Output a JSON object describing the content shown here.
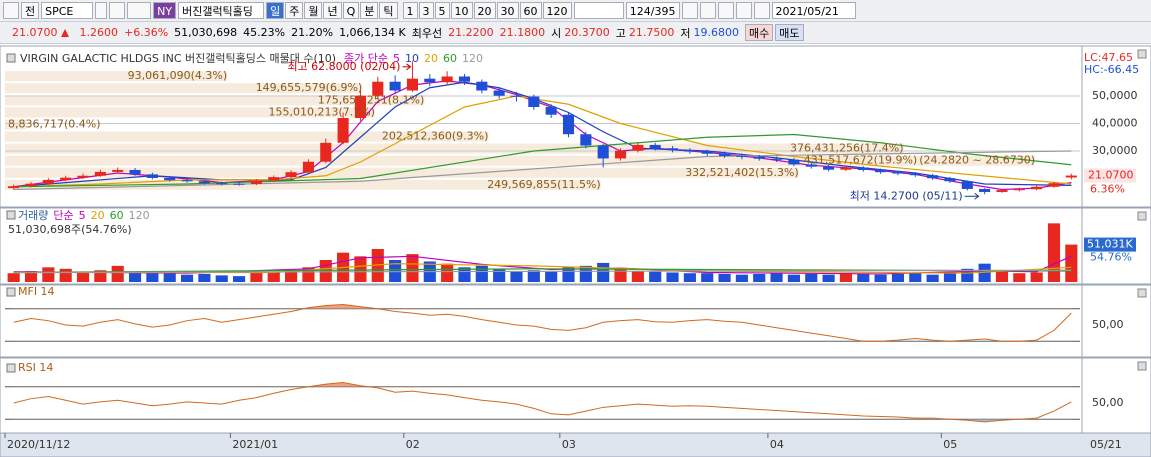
{
  "toolbar": {
    "prefix": "전",
    "code": "SPCE",
    "exchange": "NY",
    "name": "버진갤럭틱홀딩",
    "periods": [
      "일",
      "주",
      "월",
      "년",
      "Q",
      "분",
      "틱"
    ],
    "intervals": [
      "1",
      "3",
      "5",
      "10",
      "20",
      "30",
      "60",
      "120"
    ],
    "count": "124/395",
    "date": "2021/05/21"
  },
  "quote": {
    "price": "21.0700",
    "change": "1.2600",
    "change_pct": "+6.36%",
    "volume": "51,030,698",
    "vol_ratio": "45.23%",
    "turnover": "21.20%",
    "amount": "1,066,134 K",
    "best_label": "최우선",
    "ask": "21.2200",
    "bid": "21.1800",
    "open_label": "시",
    "open": "20.3700",
    "high_label": "고",
    "high": "21.7500",
    "low_label": "저",
    "low": "19.6800",
    "buy": "매수",
    "sell": "매도"
  },
  "chart_data": [
    {
      "type": "candlestick",
      "title": "VIRGIN GALACTIC HLDGS INC  버진갤럭틱홀딩스 매물대 수(10)",
      "ma_label": "종가 단순",
      "categories": [
        "2020/11/12",
        null,
        null,
        null,
        null,
        null,
        null,
        null,
        null,
        null,
        null,
        null,
        null,
        "2021/01",
        null,
        null,
        null,
        null,
        null,
        null,
        null,
        null,
        null,
        "02",
        null,
        null,
        null,
        null,
        null,
        null,
        null,
        null,
        "03",
        null,
        null,
        null,
        null,
        null,
        null,
        null,
        null,
        null,
        null,
        null,
        "04",
        null,
        null,
        null,
        null,
        null,
        null,
        null,
        null,
        null,
        "05",
        null,
        null,
        null,
        null,
        null,
        null,
        "05/21"
      ],
      "open": [
        16.5,
        17.2,
        18.1,
        19.5,
        20.3,
        21.0,
        22.4,
        23.1,
        21.5,
        20.2,
        19.4,
        19.0,
        18.3,
        18.1,
        18.0,
        19.2,
        20.5,
        22.3,
        26.1,
        33.0,
        42.0,
        50.1,
        55.2,
        52.0,
        56.3,
        55.0,
        57.1,
        55.2,
        52.0,
        50.1,
        49.8,
        46.0,
        43.2,
        36.1,
        32.0,
        27.3,
        30.1,
        32.2,
        31.0,
        30.3,
        29.8,
        29.0,
        28.2,
        27.9,
        27.2,
        26.8,
        25.1,
        24.3,
        23.2,
        24.0,
        23.1,
        22.3,
        21.8,
        21.2,
        20.1,
        19.0,
        16.2,
        15.1,
        15.8,
        16.1,
        17.0,
        20.37
      ],
      "high": [
        17.8,
        18.7,
        20.1,
        21.0,
        21.8,
        23.2,
        24.0,
        23.8,
        22.1,
        20.8,
        20.0,
        19.5,
        18.9,
        18.8,
        19.8,
        21.1,
        23.0,
        27.0,
        34.5,
        44.0,
        52.0,
        57.0,
        57.5,
        62.8,
        58.0,
        59.0,
        58.0,
        56.0,
        53.0,
        51.5,
        50.5,
        47.0,
        44.0,
        37.0,
        32.5,
        31.0,
        33.0,
        33.0,
        31.8,
        31.0,
        30.5,
        29.8,
        29.0,
        28.6,
        28.0,
        27.5,
        25.8,
        25.0,
        24.6,
        24.5,
        23.6,
        22.8,
        22.3,
        21.7,
        20.6,
        19.3,
        16.5,
        16.3,
        16.7,
        17.5,
        18.8,
        21.75
      ],
      "low": [
        16.0,
        16.8,
        17.7,
        19.0,
        19.8,
        20.6,
        21.9,
        21.0,
        19.7,
        18.9,
        18.5,
        17.8,
        17.5,
        17.4,
        17.6,
        18.8,
        20.0,
        21.9,
        25.5,
        32.5,
        41.0,
        49.0,
        51.0,
        51.5,
        53.5,
        54.0,
        54.0,
        51.0,
        49.0,
        48.0,
        45.0,
        42.0,
        35.0,
        31.0,
        24.0,
        26.5,
        29.5,
        30.2,
        29.5,
        29.0,
        28.2,
        27.5,
        27.0,
        26.5,
        26.0,
        24.5,
        23.6,
        22.6,
        22.7,
        22.5,
        21.7,
        21.2,
        20.6,
        19.5,
        18.4,
        15.6,
        14.27,
        14.8,
        15.3,
        15.8,
        16.6,
        19.68
      ],
      "close": [
        17.2,
        18.1,
        19.5,
        20.3,
        21.0,
        22.4,
        23.1,
        21.5,
        20.2,
        19.4,
        19.0,
        18.3,
        18.1,
        18.0,
        19.2,
        20.5,
        22.3,
        26.1,
        33.0,
        42.0,
        50.1,
        55.2,
        52.0,
        56.3,
        55.0,
        57.1,
        55.2,
        52.0,
        50.1,
        49.8,
        46.0,
        43.2,
        36.1,
        32.0,
        27.3,
        30.1,
        32.2,
        31.0,
        30.3,
        29.8,
        29.0,
        28.2,
        27.9,
        27.2,
        26.8,
        25.1,
        24.3,
        23.2,
        24.0,
        23.1,
        22.3,
        21.8,
        21.2,
        20.1,
        19.0,
        16.2,
        15.1,
        15.8,
        16.1,
        17.0,
        18.3,
        21.07
      ],
      "up_color": "#e8281f",
      "down_color": "#1f4fd6",
      "series": [
        {
          "name": "5",
          "color": "#c000c0",
          "x": [
            0,
            3,
            6,
            9,
            12,
            15,
            17,
            19,
            21,
            23,
            25,
            27,
            29,
            31,
            33,
            35,
            37,
            40,
            43,
            46,
            49,
            52,
            55,
            57,
            59,
            61
          ],
          "values": [
            17,
            19.5,
            22,
            20.5,
            18.5,
            19.5,
            22.5,
            33,
            48,
            54,
            55.5,
            54,
            50.5,
            46,
            36,
            30,
            31,
            29.5,
            27.5,
            24.8,
            23.5,
            21.5,
            18,
            16,
            16.5,
            18.5
          ]
        },
        {
          "name": "10",
          "color": "#1f3fbf",
          "x": [
            0,
            4,
            8,
            12,
            16,
            18,
            20,
            22,
            24,
            26,
            28,
            30,
            32,
            34,
            36,
            40,
            44,
            48,
            52,
            56,
            61
          ],
          "values": [
            17,
            19,
            21,
            19.5,
            19.5,
            24,
            35,
            46,
            53,
            55,
            53,
            49,
            44,
            37,
            31,
            30,
            27.5,
            24.5,
            22,
            18,
            17.5
          ]
        },
        {
          "name": "20",
          "color": "#e0a000",
          "x": [
            0,
            5,
            10,
            15,
            18,
            20,
            23,
            26,
            29,
            32,
            35,
            40,
            45,
            50,
            55,
            61
          ],
          "values": [
            17,
            18,
            19.5,
            19.5,
            21,
            26,
            36,
            46,
            50,
            47,
            40,
            32,
            28,
            24.5,
            21.5,
            18
          ]
        },
        {
          "name": "60",
          "color": "#2f9a2f",
          "x": [
            0,
            10,
            20,
            30,
            40,
            45,
            50,
            55,
            61
          ],
          "values": [
            17,
            18,
            20,
            30,
            35,
            36,
            33,
            29,
            25
          ]
        },
        {
          "name": "120",
          "color": "#999999",
          "x": [
            0,
            20,
            40,
            61
          ],
          "values": [
            16,
            19,
            28,
            30
          ]
        }
      ],
      "ylim": [
        10,
        66
      ],
      "yticks": [
        {
          "value": 30,
          "label": "30,0000"
        },
        {
          "value": 40,
          "label": "40,0000"
        },
        {
          "value": 50,
          "label": "50,0000"
        }
      ],
      "grid": true,
      "lc_label": "LC:47.65",
      "hc_label": "HC:-66.45",
      "last_label": "21.0700",
      "change_label": "6.36%",
      "high_note": "최고 62.8000 (02/04)",
      "low_note": "최저 14.2700 (05/11)",
      "profile": {
        "color": "#f3e4d0",
        "bins": [
          15.5,
          19.891,
          24.282,
          28.673,
          33.064,
          37.455,
          41.846,
          46.237,
          50.628,
          55.019,
          59.41
        ],
        "values": [
          249569855,
          332521402,
          431517672,
          376431256,
          202512360,
          8836717,
          155010213,
          175657251,
          149655579,
          93061090
        ],
        "value_labels": [
          "249,569,855(11.5%)",
          "332,521,402(15.3%)",
          "431,517,672(19.9%)",
          "376,431,256(17.4%)",
          "202,512,360(9.3%)",
          "8,836,717(0.4%)",
          "155,010,213(7.1%)",
          "175,657,251(8.1%)",
          "149,655,579(6.9%)",
          "93,061,090(4.3%)"
        ],
        "range_label": "(24.2820 ~ 28.6730)"
      }
    },
    {
      "type": "bar",
      "title": "거래량",
      "ma_label": "단순",
      "header": "51,030,698주(54.76%)",
      "last_label": "51,031K",
      "pct_label": "54.76%",
      "values": [
        12000,
        15000,
        20000,
        18000,
        14000,
        16000,
        22000,
        13000,
        15000,
        12000,
        10000,
        11000,
        9000,
        8000,
        14000,
        13000,
        16000,
        20000,
        30000,
        40000,
        35000,
        45000,
        30000,
        38000,
        28000,
        25000,
        20000,
        22000,
        18000,
        15000,
        16000,
        14000,
        20000,
        22000,
        26000,
        18000,
        15000,
        14000,
        13000,
        12000,
        12000,
        11000,
        10000,
        11000,
        12000,
        10000,
        11000,
        10000,
        12000,
        11000,
        10000,
        11000,
        12000,
        10000,
        12000,
        18000,
        25000,
        14000,
        12000,
        13000,
        80000,
        51031
      ],
      "series": [
        {
          "name": "5",
          "color": "#c000c0",
          "x": [
            0,
            10,
            17,
            20,
            23,
            27,
            31,
            35,
            40,
            50,
            56,
            59,
            61
          ],
          "values": [
            14000,
            12000,
            18000,
            33000,
            35000,
            24000,
            17000,
            19000,
            13000,
            11000,
            15000,
            14000,
            35000
          ]
        },
        {
          "name": "20",
          "color": "#e0a000",
          "x": [
            0,
            15,
            22,
            30,
            40,
            55,
            61
          ],
          "values": [
            13000,
            13000,
            25000,
            22000,
            15000,
            12000,
            20000
          ]
        },
        {
          "name": "60",
          "color": "#2f9a2f",
          "x": [
            0,
            30,
            61
          ],
          "values": [
            13000,
            18000,
            15000
          ]
        },
        {
          "name": "120",
          "color": "#999999",
          "x": [
            0,
            61
          ],
          "values": [
            13000,
            16000
          ]
        }
      ],
      "ylim": [
        0,
        90000
      ]
    },
    {
      "type": "line",
      "title": "MFI 14",
      "color": "#d2691e",
      "levels": [
        20,
        80
      ],
      "fill_high": "#f0a080",
      "fill_low": "#b0b0b0",
      "values": [
        55,
        62,
        58,
        50,
        48,
        55,
        60,
        52,
        46,
        50,
        58,
        62,
        55,
        60,
        65,
        70,
        75,
        82,
        86,
        88,
        84,
        80,
        75,
        72,
        68,
        70,
        66,
        60,
        55,
        50,
        48,
        42,
        40,
        45,
        55,
        58,
        60,
        56,
        55,
        58,
        60,
        57,
        55,
        50,
        45,
        40,
        35,
        30,
        25,
        20,
        20,
        22,
        25,
        22,
        20,
        22,
        24,
        20,
        20,
        22,
        40,
        72
      ],
      "ylim": [
        0,
        100
      ],
      "yticks": [
        {
          "value": 50,
          "label": "50,00"
        }
      ]
    },
    {
      "type": "line",
      "title": "RSI 14",
      "color": "#d2691e",
      "levels": [
        20,
        80
      ],
      "fill_high": "#f0a080",
      "fill_low": "#9fc0e0",
      "values": [
        50,
        58,
        62,
        55,
        48,
        52,
        55,
        50,
        45,
        48,
        52,
        50,
        48,
        55,
        60,
        68,
        75,
        80,
        85,
        88,
        82,
        78,
        70,
        72,
        68,
        65,
        60,
        55,
        52,
        48,
        40,
        30,
        28,
        35,
        42,
        45,
        48,
        46,
        44,
        45,
        44,
        42,
        40,
        38,
        36,
        34,
        32,
        30,
        28,
        26,
        25,
        24,
        22,
        22,
        20,
        18,
        15,
        18,
        20,
        22,
        35,
        52
      ],
      "ylim": [
        0,
        100
      ],
      "yticks": [
        {
          "value": 50,
          "label": "50,00"
        }
      ]
    }
  ]
}
